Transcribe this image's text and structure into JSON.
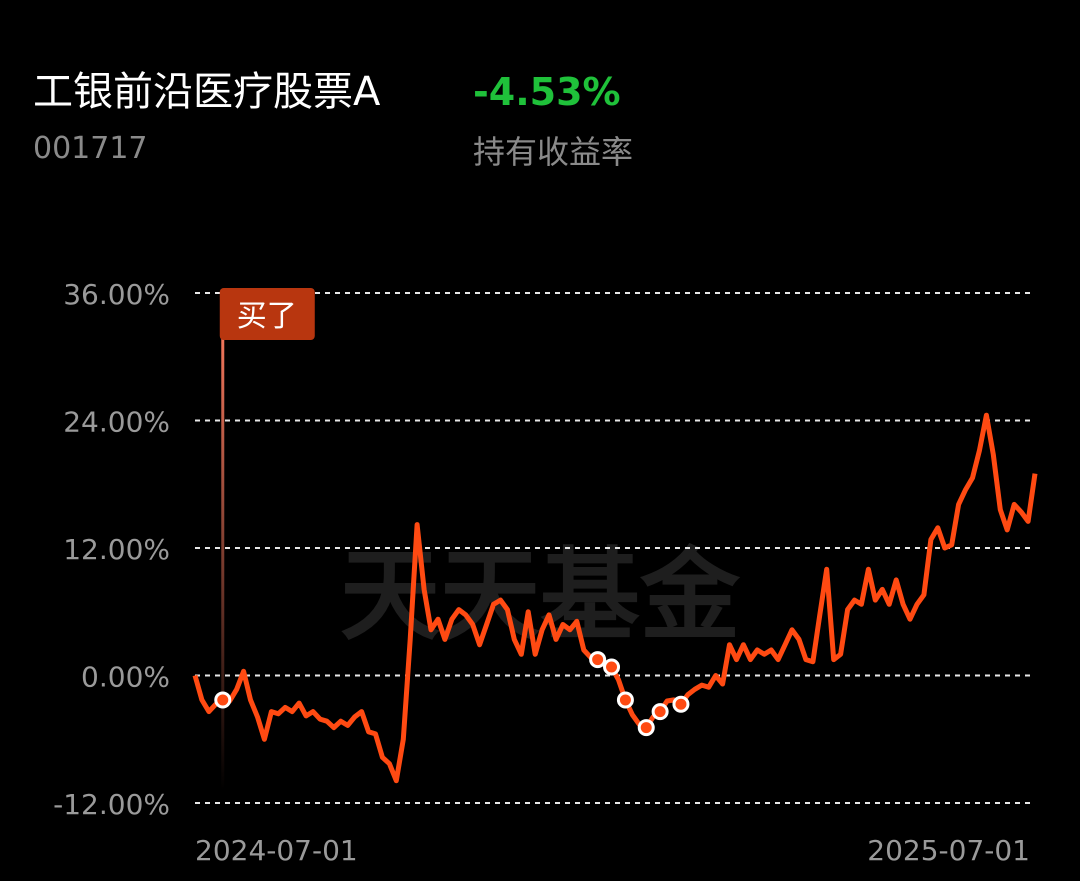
{
  "header": {
    "title": "工银前沿医疗股票A",
    "code": "001717",
    "return": "-4.53%",
    "return_label": "持有收益率"
  },
  "chart_data": {
    "type": "line",
    "watermark": "天天基金",
    "annotation": {
      "text": "买了",
      "index": 4
    },
    "color": "#ff4a12",
    "categories": [
      "2024-07-01",
      null,
      null,
      null,
      null,
      null,
      null,
      null,
      null,
      null,
      null,
      null,
      null,
      null,
      null,
      null,
      null,
      null,
      null,
      null,
      null,
      null,
      null,
      null,
      null,
      null,
      null,
      null,
      null,
      null,
      null,
      null,
      null,
      null,
      null,
      null,
      null,
      null,
      null,
      null,
      null,
      null,
      null,
      null,
      null,
      null,
      null,
      null,
      null,
      null,
      null,
      null,
      null,
      null,
      null,
      null,
      null,
      null,
      null,
      null,
      null,
      null,
      null,
      null,
      null,
      null,
      null,
      null,
      null,
      null,
      null,
      null,
      null,
      null,
      null,
      null,
      null,
      null,
      null,
      null,
      null,
      null,
      null,
      null,
      null,
      null,
      null,
      null,
      null,
      null,
      null,
      null,
      null,
      null,
      null,
      null,
      null,
      null,
      null,
      null,
      null,
      null,
      null,
      null,
      null,
      null,
      null,
      null,
      null,
      null,
      null,
      null,
      null,
      null,
      null,
      null,
      null,
      null,
      null,
      null,
      null,
      "2025-07-01"
    ],
    "values": [
      0,
      -2.3,
      -3.4,
      -2.7,
      -2.3,
      -2.4,
      -1.3,
      0.4,
      -2.3,
      -3.9,
      -6.0,
      -3.4,
      -3.6,
      -3.0,
      -3.4,
      -2.6,
      -3.8,
      -3.4,
      -4.1,
      -4.3,
      -4.9,
      -4.3,
      -4.7,
      -3.9,
      -3.4,
      -5.3,
      -5.5,
      -7.7,
      -8.3,
      -9.9,
      -6.0,
      3.4,
      14.2,
      8.1,
      4.3,
      5.3,
      3.4,
      5.3,
      6.2,
      5.7,
      4.8,
      2.9,
      4.8,
      6.7,
      7.1,
      6.2,
      3.4,
      2.0,
      6.0,
      2.0,
      4.3,
      5.7,
      3.4,
      4.8,
      4.3,
      5.1,
      2.4,
      1.7,
      1.5,
      1.0,
      0.8,
      -0.4,
      -2.3,
      -3.7,
      -4.6,
      -4.9,
      -3.9,
      -3.4,
      -2.4,
      -2.3,
      -2.7,
      -1.8,
      -1.3,
      -0.9,
      -1.1,
      0,
      -0.8,
      2.9,
      1.5,
      2.9,
      1.5,
      2.4,
      2.0,
      2.4,
      1.5,
      2.9,
      4.3,
      3.4,
      1.5,
      1.3,
      5.7,
      10.0,
      1.5,
      2.0,
      6.2,
      7.1,
      6.7,
      10.0,
      7.1,
      8.1,
      6.7,
      9.0,
      6.7,
      5.3,
      6.7,
      7.6,
      12.8,
      13.9,
      12.0,
      12.3,
      16.1,
      17.5,
      18.6,
      21.2,
      24.5,
      20.8,
      15.6,
      13.7,
      16.1,
      15.4,
      14.5,
      19.0
    ],
    "transactions": [
      4,
      58,
      60,
      62,
      65,
      67,
      70
    ],
    "ylim": [
      -12,
      36
    ],
    "yticks": [
      {
        "value": -12,
        "label": "-12.00%"
      },
      {
        "value": 0,
        "label": "0.00%"
      },
      {
        "value": 12,
        "label": "12.00%"
      },
      {
        "value": 24,
        "label": "24.00%"
      },
      {
        "value": 36,
        "label": "36.00%"
      }
    ],
    "grid": true
  }
}
